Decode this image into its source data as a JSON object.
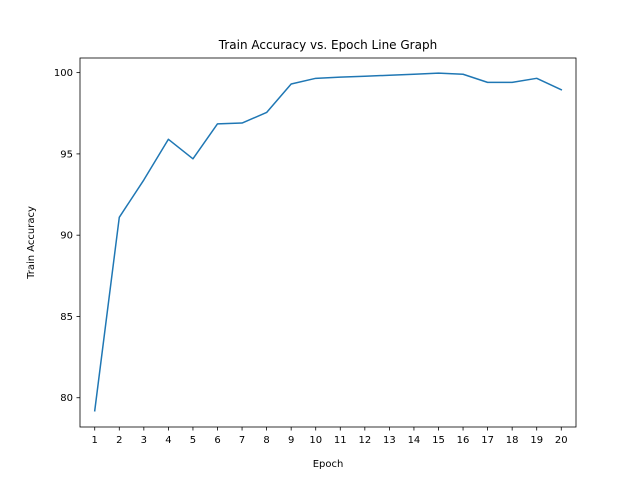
{
  "chart_data": {
    "type": "line",
    "title": "Train Accuracy vs. Epoch Line Graph",
    "xlabel": "Epoch",
    "ylabel": "Train Accuracy",
    "x": [
      1,
      2,
      3,
      4,
      5,
      6,
      7,
      8,
      9,
      10,
      11,
      12,
      13,
      14,
      15,
      16,
      17,
      18,
      19,
      20
    ],
    "series": [
      {
        "values": [
          79.2,
          91.1,
          93.4,
          95.9,
          94.7,
          96.85,
          96.9,
          97.55,
          99.3,
          99.65,
          99.72,
          99.78,
          99.84,
          99.9,
          99.97,
          99.9,
          99.4,
          99.4,
          99.65,
          98.95
        ],
        "color": "#1f77b4"
      }
    ],
    "xlim": [
      0.4,
      20.6
    ],
    "ylim": [
      78.2,
      100.9
    ],
    "xticks": [
      1,
      2,
      3,
      4,
      5,
      6,
      7,
      8,
      9,
      10,
      11,
      12,
      13,
      14,
      15,
      16,
      17,
      18,
      19,
      20
    ],
    "yticks": [
      80,
      85,
      90,
      95,
      100
    ],
    "grid": false,
    "legend": "none"
  }
}
